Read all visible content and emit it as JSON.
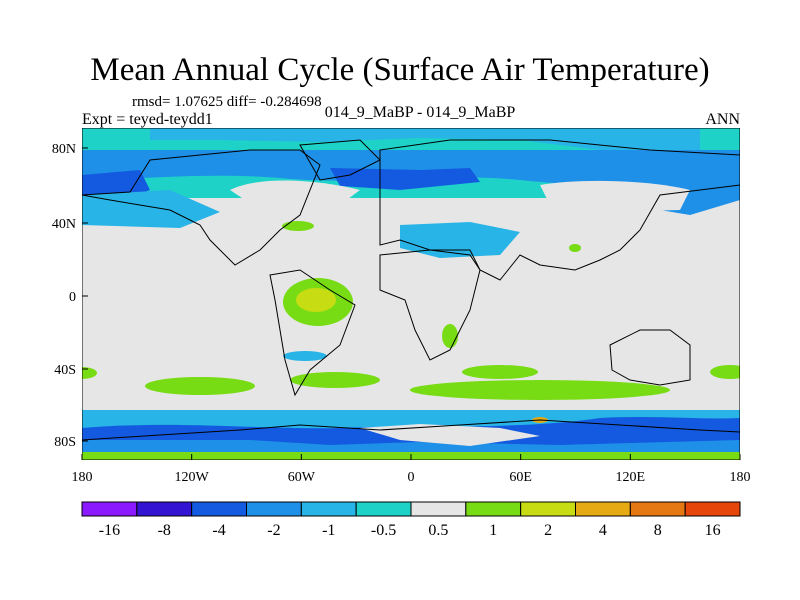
{
  "title": "Mean Annual Cycle (Surface Air Temperature)",
  "stats": {
    "rmsd_label": "rmsd=",
    "rmsd": "1.07625",
    "diff_label": "diff=",
    "diff": "-0.284698"
  },
  "expt": "Expt = teyed-teydd1",
  "center_label": "014_9_MaBP - 014_9_MaBP",
  "season": "ANN",
  "map": {
    "x_ticks": [
      "180",
      "120W",
      "60W",
      "0",
      "60E",
      "120E",
      "180"
    ],
    "y_ticks": [
      "80N",
      "40N",
      "0",
      "40S",
      "80S"
    ],
    "background_color": "#e6e6e6"
  },
  "colorbar": {
    "colors": [
      "#8c1aff",
      "#3214d2",
      "#145ae0",
      "#1e90e8",
      "#28b4e6",
      "#1ed2c8",
      "#e6e6e6",
      "#78dc14",
      "#c8dc14",
      "#e6aa14",
      "#e67814",
      "#e6460a"
    ],
    "labels": [
      "-16",
      "-8",
      "-4",
      "-2",
      "-1",
      "-0.5",
      "0.5",
      "1",
      "2",
      "4",
      "8",
      "16"
    ]
  }
}
